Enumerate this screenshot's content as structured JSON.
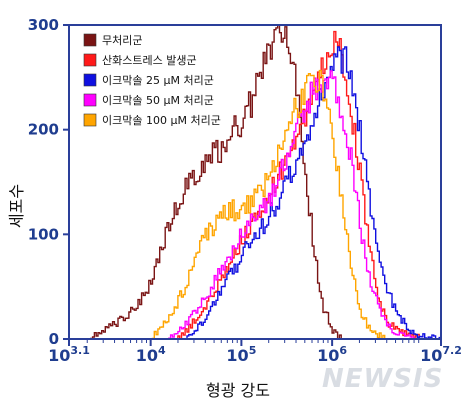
{
  "chart_data": {
    "type": "line",
    "xlabel": "형광 강도",
    "ylabel": "세포수",
    "x_scale": "log",
    "x_range_log10": [
      3.1,
      7.2
    ],
    "x_ticks": [
      {
        "log": 3.1,
        "base": "10",
        "exp": "3.1"
      },
      {
        "log": 4,
        "base": "10",
        "exp": "4"
      },
      {
        "log": 5,
        "base": "10",
        "exp": "5"
      },
      {
        "log": 6,
        "base": "10",
        "exp": "6"
      },
      {
        "log": 7.2,
        "base": "10",
        "exp": "7.2"
      }
    ],
    "ylim": [
      0,
      300
    ],
    "y_ticks": [
      0,
      100,
      200,
      300
    ],
    "grid": false,
    "legend_position": "top-left",
    "series": [
      {
        "name": "무처리군",
        "color": "#7a1414",
        "points": [
          [
            3.3,
            0
          ],
          [
            3.5,
            10
          ],
          [
            3.7,
            20
          ],
          [
            3.9,
            40
          ],
          [
            4.0,
            55
          ],
          [
            4.2,
            110
          ],
          [
            4.4,
            150
          ],
          [
            4.6,
            170
          ],
          [
            4.8,
            185
          ],
          [
            5.0,
            210
          ],
          [
            5.1,
            225
          ],
          [
            5.2,
            250
          ],
          [
            5.3,
            275
          ],
          [
            5.4,
            290
          ],
          [
            5.5,
            285
          ],
          [
            5.6,
            245
          ],
          [
            5.7,
            160
          ],
          [
            5.8,
            80
          ],
          [
            5.9,
            30
          ],
          [
            6.0,
            8
          ],
          [
            6.1,
            0
          ]
        ]
      },
      {
        "name": "산화스트레스 발생군",
        "color": "#ff1a1a",
        "points": [
          [
            4.3,
            0
          ],
          [
            4.5,
            20
          ],
          [
            4.7,
            45
          ],
          [
            4.9,
            80
          ],
          [
            5.1,
            110
          ],
          [
            5.3,
            140
          ],
          [
            5.5,
            175
          ],
          [
            5.7,
            215
          ],
          [
            5.85,
            250
          ],
          [
            5.95,
            280
          ],
          [
            6.0,
            285
          ],
          [
            6.1,
            270
          ],
          [
            6.2,
            220
          ],
          [
            6.3,
            160
          ],
          [
            6.4,
            90
          ],
          [
            6.5,
            40
          ],
          [
            6.6,
            15
          ],
          [
            6.8,
            5
          ],
          [
            7.0,
            0
          ]
        ]
      },
      {
        "name": "이크막솔 25 μM 처리군",
        "color": "#1010e0",
        "points": [
          [
            4.4,
            0
          ],
          [
            4.6,
            20
          ],
          [
            4.8,
            50
          ],
          [
            5.0,
            80
          ],
          [
            5.2,
            105
          ],
          [
            5.4,
            130
          ],
          [
            5.6,
            170
          ],
          [
            5.8,
            215
          ],
          [
            5.95,
            245
          ],
          [
            6.05,
            270
          ],
          [
            6.15,
            265
          ],
          [
            6.25,
            225
          ],
          [
            6.35,
            170
          ],
          [
            6.45,
            110
          ],
          [
            6.55,
            60
          ],
          [
            6.7,
            25
          ],
          [
            6.85,
            8
          ],
          [
            7.0,
            2
          ],
          [
            7.2,
            0
          ]
        ]
      },
      {
        "name": "이크막솔 50 μM 처리군",
        "color": "#ff00ff",
        "points": [
          [
            4.2,
            0
          ],
          [
            4.4,
            15
          ],
          [
            4.6,
            40
          ],
          [
            4.8,
            70
          ],
          [
            5.0,
            100
          ],
          [
            5.2,
            120
          ],
          [
            5.4,
            150
          ],
          [
            5.6,
            200
          ],
          [
            5.75,
            230
          ],
          [
            5.9,
            250
          ],
          [
            6.0,
            245
          ],
          [
            6.1,
            220
          ],
          [
            6.2,
            170
          ],
          [
            6.3,
            110
          ],
          [
            6.4,
            60
          ],
          [
            6.55,
            20
          ],
          [
            6.7,
            5
          ],
          [
            6.9,
            0
          ]
        ]
      },
      {
        "name": "이크막솔 100 μM 처리군",
        "color": "#ffa500",
        "points": [
          [
            4.0,
            0
          ],
          [
            4.2,
            20
          ],
          [
            4.4,
            55
          ],
          [
            4.6,
            100
          ],
          [
            4.8,
            120
          ],
          [
            5.0,
            125
          ],
          [
            5.2,
            140
          ],
          [
            5.4,
            175
          ],
          [
            5.55,
            210
          ],
          [
            5.7,
            240
          ],
          [
            5.8,
            250
          ],
          [
            5.9,
            240
          ],
          [
            6.0,
            195
          ],
          [
            6.1,
            130
          ],
          [
            6.2,
            70
          ],
          [
            6.3,
            25
          ],
          [
            6.45,
            5
          ],
          [
            6.6,
            0
          ]
        ]
      }
    ]
  },
  "watermark": "NEWSIS"
}
